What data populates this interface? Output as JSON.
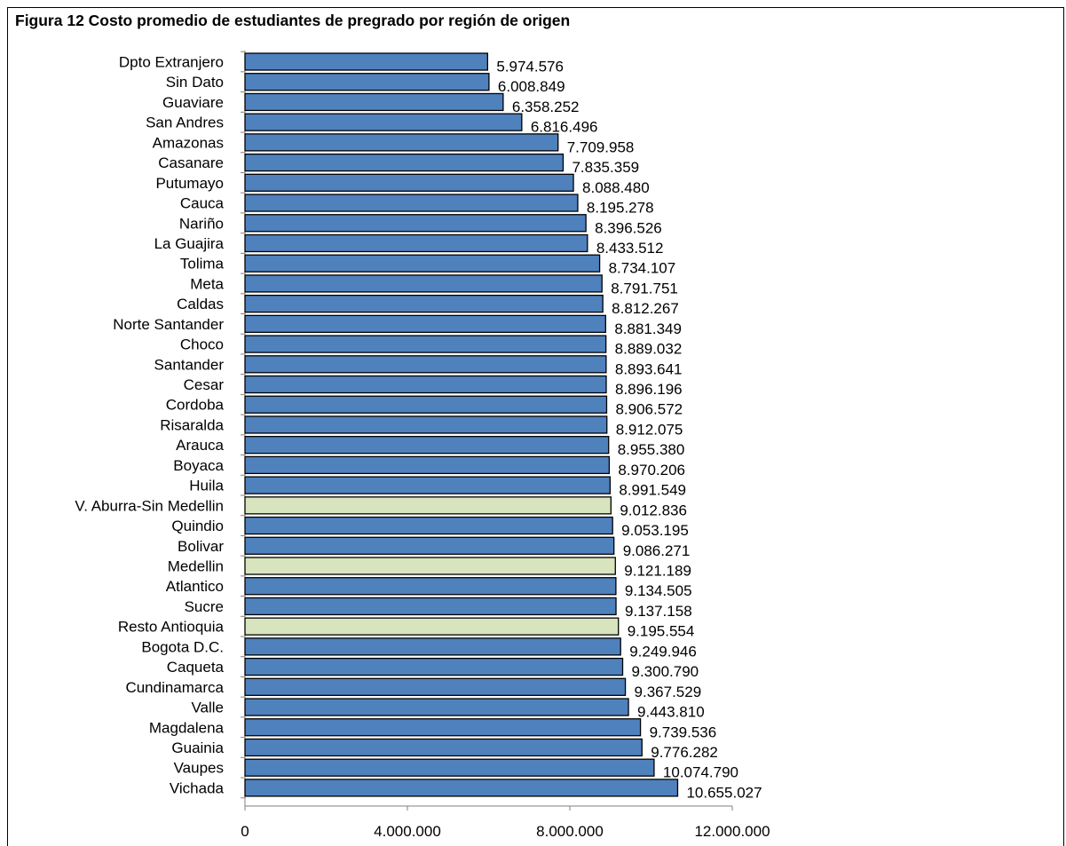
{
  "title": "Figura 12 Costo promedio de estudiantes de pregrado por región de origen",
  "colors": {
    "bar_default": "#4f81bd",
    "bar_highlight": "#d7e4bd",
    "bar_stroke": "#000000",
    "axis": "#808080"
  },
  "chart_data": {
    "type": "bar",
    "orientation": "horizontal",
    "title": "Figura 12 Costo promedio de estudiantes de pregrado por región de origen",
    "xlim": [
      0,
      12000000
    ],
    "xticks": [
      0,
      4000000,
      8000000,
      12000000
    ],
    "xtick_labels": [
      "0",
      "4.000.000",
      "8.000.000",
      "12.000.000"
    ],
    "grid": false,
    "legend": "none",
    "categories": [
      "Dpto Extranjero",
      "Sin Dato",
      "Guaviare",
      "San Andres",
      "Amazonas",
      "Casanare",
      "Putumayo",
      "Cauca",
      "Nariño",
      "La Guajira",
      "Tolima",
      "Meta",
      "Caldas",
      "Norte Santander",
      "Choco",
      "Santander",
      "Cesar",
      "Cordoba",
      "Risaralda",
      "Arauca",
      "Boyaca",
      "Huila",
      "V. Aburra-Sin Medellin",
      "Quindio",
      "Bolivar",
      "Medellin",
      "Atlantico",
      "Sucre",
      "Resto Antioquia",
      "Bogota D.C.",
      "Caqueta",
      "Cundinamarca",
      "Valle",
      "Magdalena",
      "Guainia",
      "Vaupes",
      "Vichada"
    ],
    "values": [
      5974576,
      6008849,
      6358252,
      6816496,
      7709958,
      7835359,
      8088480,
      8195278,
      8396526,
      8433512,
      8734107,
      8791751,
      8812267,
      8881349,
      8889032,
      8893641,
      8896196,
      8906572,
      8912075,
      8955380,
      8970206,
      8991549,
      9012836,
      9053195,
      9086271,
      9121189,
      9134505,
      9137158,
      9195554,
      9249946,
      9300790,
      9367529,
      9443810,
      9739536,
      9776282,
      10074790,
      10655027
    ],
    "value_labels": [
      "5.974.576",
      "6.008.849",
      "6.358.252",
      "6.816.496",
      "7.709.958",
      "7.835.359",
      "8.088.480",
      "8.195.278",
      "8.396.526",
      "8.433.512",
      "8.734.107",
      "8.791.751",
      "8.812.267",
      "8.881.349",
      "8.889.032",
      "8.893.641",
      "8.896.196",
      "8.906.572",
      "8.912.075",
      "8.955.380",
      "8.970.206",
      "8.991.549",
      "9.012.836",
      "9.053.195",
      "9.086.271",
      "9.121.189",
      "9.134.505",
      "9.137.158",
      "9.195.554",
      "9.249.946",
      "9.300.790",
      "9.367.529",
      "9.443.810",
      "9.739.536",
      "9.776.282",
      "10.074.790",
      "10.655.027"
    ],
    "highlighted": [
      "V. Aburra-Sin Medellin",
      "Medellin",
      "Resto Antioquia"
    ]
  }
}
